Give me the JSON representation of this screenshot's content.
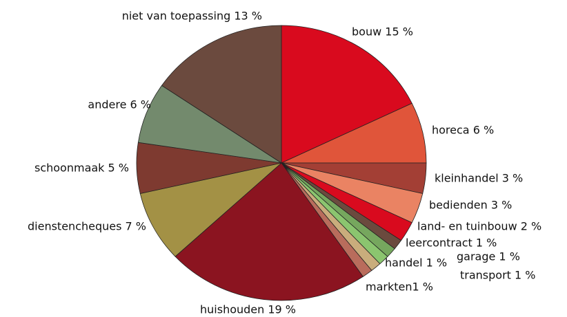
{
  "chart_data": {
    "type": "pie",
    "categories": [
      "bouw 15 %",
      "horeca 6 %",
      "kleinhandel 3 %",
      "bedienden 3 %",
      "land- en tuinbouw 2 %",
      "leercontract 1 %",
      "garage 1 %",
      "handel 1 %",
      "transport 1 %",
      "markten1 %",
      "huishouden 19 %",
      "dienstencheques 7 %",
      "schoonmaak 5 %",
      "andere 6 %",
      "niet van toepassing 13 %"
    ],
    "values": [
      15,
      6,
      3,
      3,
      2,
      1,
      1,
      1,
      1,
      1,
      19,
      7,
      5,
      6,
      13
    ],
    "colors": [
      "#d90a1e",
      "#e0553a",
      "#a33f35",
      "#ea8363",
      "#d90a1e",
      "#6b4a3e",
      "#76a75e",
      "#8bc56f",
      "#c9ad7c",
      "#b96c5c",
      "#8b1420",
      "#a39145",
      "#7e3a30",
      "#738a6d",
      "#6b4a3e"
    ]
  }
}
